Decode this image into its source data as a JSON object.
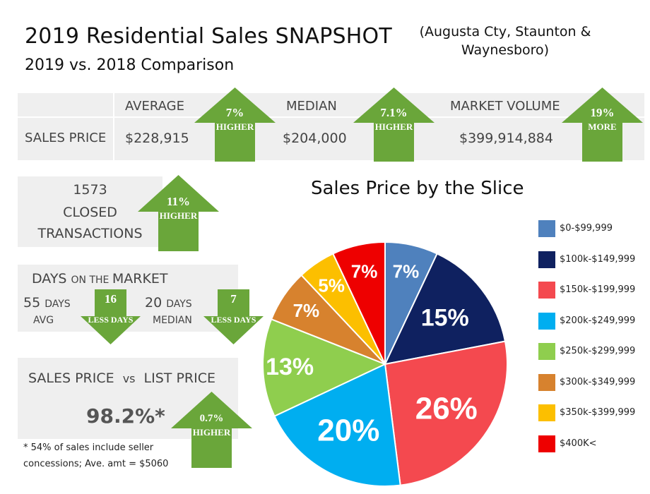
{
  "header": {
    "title": "2019 Residential Sales SNAPSHOT",
    "location": "(Augusta Cty, Staunton & Waynesboro)",
    "subtitle": "2019 vs. 2018 Comparison"
  },
  "sales_table": {
    "row_label": "SALES PRICE",
    "average": {
      "label": "AVERAGE",
      "value": "$228,915",
      "change": "7%",
      "change_text": "HIGHER"
    },
    "median": {
      "label": "MEDIAN",
      "value": "$204,000",
      "change": "7.1%",
      "change_text": "HIGHER"
    },
    "volume": {
      "label": "MARKET VOLUME",
      "value": "$399,914,884",
      "change": "19%",
      "change_text": "MORE"
    }
  },
  "transactions": {
    "count": "1573",
    "line1": "CLOSED",
    "line2": "TRANSACTIONS",
    "change": "11%",
    "change_text": "HIGHER"
  },
  "days_on_market": {
    "title_big1": "DAYS ",
    "title_small": "ON THE ",
    "title_big2": "MARKET",
    "avg_number": "55 ",
    "avg_unit": "DAYS",
    "avg_label": "AVG",
    "avg_change": "16",
    "avg_change_text": "LESS DAYS",
    "median_number": "20 ",
    "median_unit": "DAYS",
    "median_label": "MEDIAN",
    "median_change": "7",
    "median_change_text": "LESS DAYS"
  },
  "sales_vs_list": {
    "title_a": "SALES PRICE",
    "title_vs": "vs",
    "title_b": "LIST PRICE",
    "value": "98.2%*",
    "change": "0.7%",
    "change_text": "HIGHER",
    "footnote_line1": "* 54% of sales include seller",
    "footnote_line2": "concessions; Ave. amt = $5060"
  },
  "colors": {
    "arrow_green": "#6aa63a",
    "panel_gray": "#efefef"
  },
  "chart_data": {
    "type": "pie",
    "title": "Sales Price by the Slice",
    "categories": [
      "$0-$99,999",
      "$100k-$149,999",
      "$150k-$199,999",
      "$200k-$249,999",
      "$250k-$299,999",
      "$300k-$349,999",
      "$350k-$399,999",
      "$400K<"
    ],
    "values": [
      7,
      15,
      26,
      20,
      13,
      7,
      5,
      7
    ],
    "labels": [
      "7%",
      "15%",
      "26%",
      "20%",
      "13%",
      "7%",
      "5%",
      "7%"
    ],
    "colors": [
      "#4f81bd",
      "#0f2160",
      "#f4494f",
      "#00aef0",
      "#8fce4e",
      "#d7822e",
      "#fcbf00",
      "#ee0000"
    ],
    "legend_position": "right"
  }
}
